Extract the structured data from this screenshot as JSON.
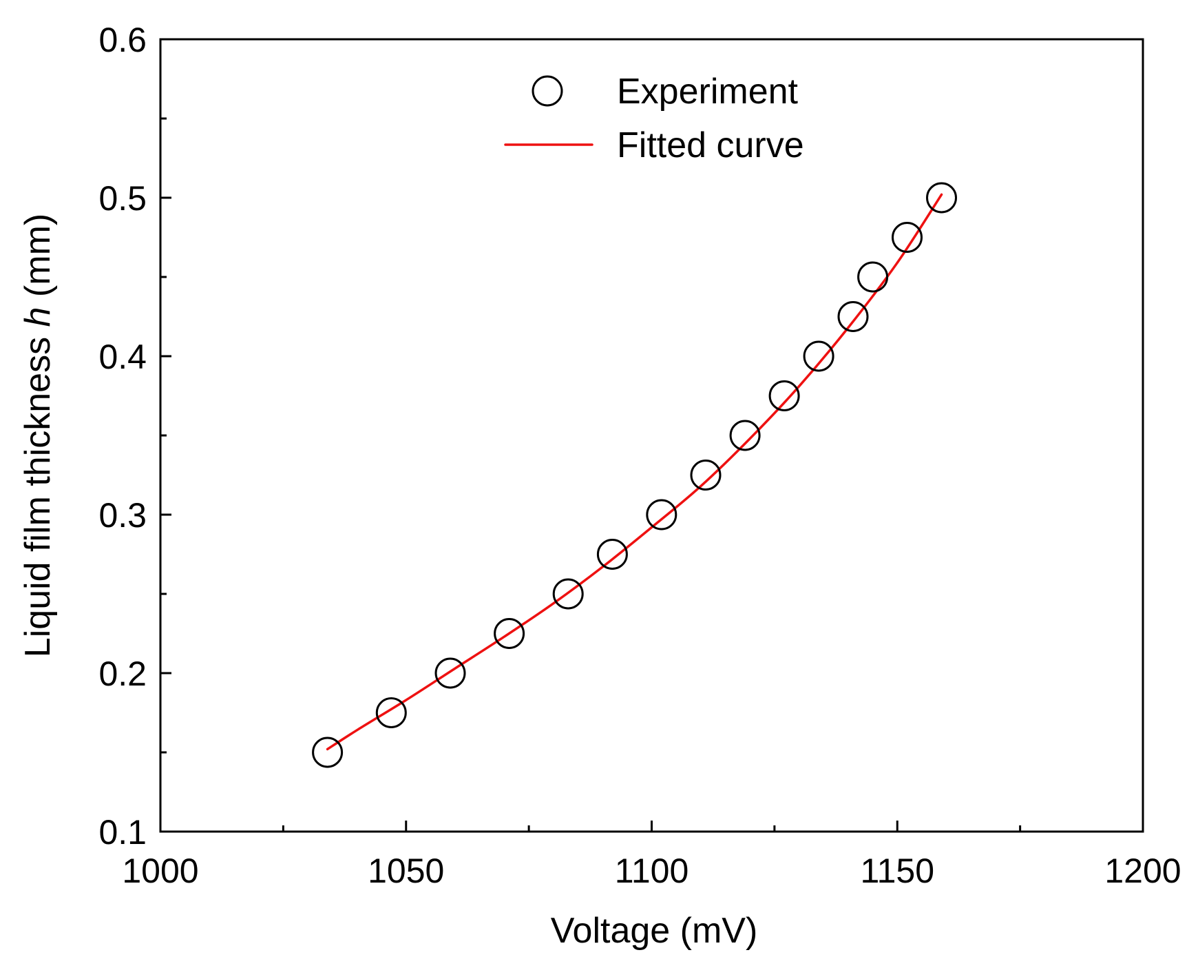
{
  "chart_data": {
    "type": "line",
    "title": "",
    "xlabel": "Voltage (mV)",
    "ylabel_parts": {
      "prefix": "Liquid film thickness ",
      "symbol": "h",
      "suffix": " (mm)"
    },
    "xlim": [
      1000,
      1200
    ],
    "ylim": [
      0.1,
      0.6
    ],
    "x_major_ticks": [
      1000,
      1050,
      1100,
      1150,
      1200
    ],
    "x_minor_ticks": [
      1025,
      1075,
      1125,
      1175
    ],
    "y_major_ticks": [
      0.1,
      0.2,
      0.3,
      0.4,
      0.5,
      0.6
    ],
    "y_minor_ticks": [
      0.15,
      0.25,
      0.35,
      0.45,
      0.55
    ],
    "x_tick_labels": [
      "1000",
      "1050",
      "1100",
      "1150",
      "1200"
    ],
    "y_tick_labels": [
      "0.1",
      "0.2",
      "0.3",
      "0.4",
      "0.5",
      "0.6"
    ],
    "legend": {
      "position": "top-center",
      "entries": [
        "Experiment",
        "Fitted curve"
      ]
    },
    "grid": false,
    "series": [
      {
        "name": "Experiment",
        "kind": "scatter",
        "marker": "open-circle",
        "color": "#000000",
        "x": [
          1034,
          1047,
          1059,
          1071,
          1083,
          1092,
          1102,
          1111,
          1119,
          1127,
          1134,
          1141,
          1145,
          1152,
          1159
        ],
        "y": [
          0.15,
          0.175,
          0.2,
          0.225,
          0.25,
          0.275,
          0.3,
          0.325,
          0.35,
          0.375,
          0.4,
          0.425,
          0.45,
          0.475,
          0.5
        ]
      },
      {
        "name": "Fitted curve",
        "kind": "line",
        "color": "#ee1111",
        "x": [
          1034,
          1040,
          1050,
          1060,
          1070,
          1080,
          1090,
          1100,
          1110,
          1120,
          1130,
          1140,
          1150,
          1159
        ],
        "y": [
          0.152,
          0.164,
          0.183,
          0.203,
          0.223,
          0.244,
          0.267,
          0.292,
          0.318,
          0.348,
          0.381,
          0.418,
          0.459,
          0.502
        ]
      }
    ]
  }
}
